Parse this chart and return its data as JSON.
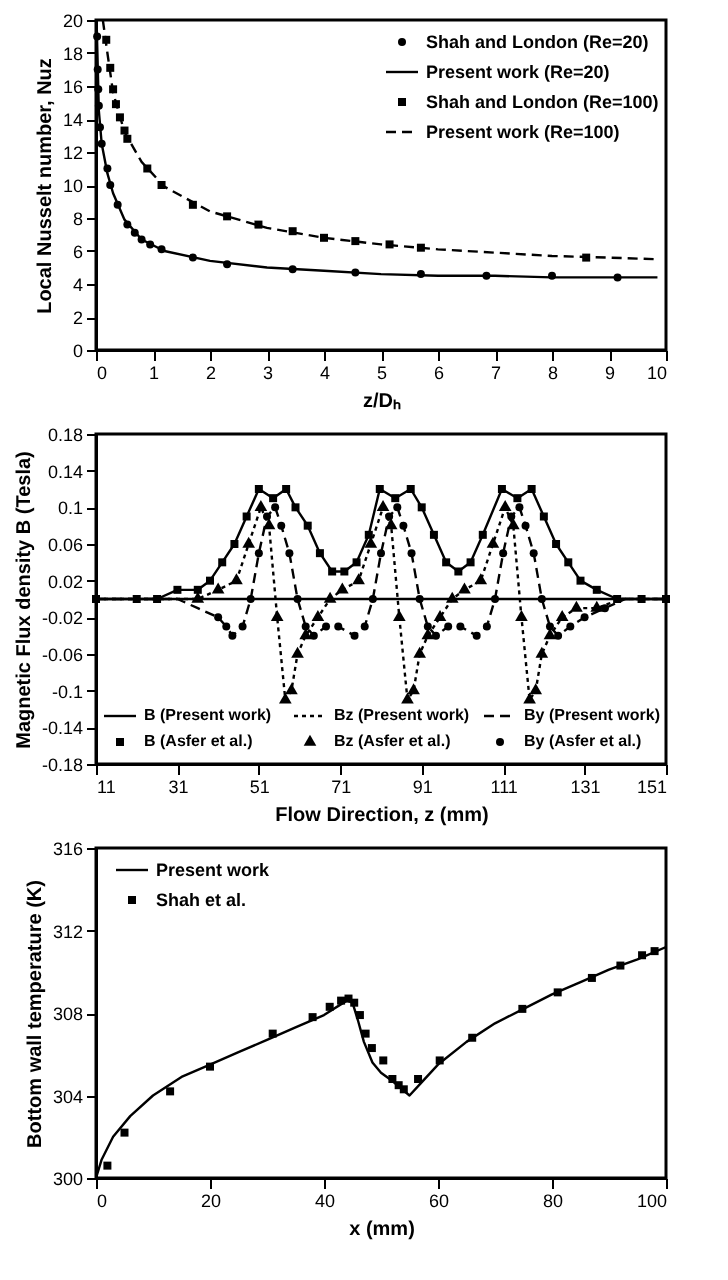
{
  "chart_data": [
    {
      "type": "line",
      "xlabel": "z/Dₕ",
      "ylabel": "Local Nusselt number, Nuz",
      "xlim": [
        0,
        10
      ],
      "ylim": [
        0,
        20
      ],
      "xticks": [
        0,
        1,
        2,
        3,
        4,
        5,
        6,
        7,
        8,
        9,
        10
      ],
      "yticks": [
        0,
        2,
        4,
        6,
        8,
        10,
        12,
        14,
        16,
        18,
        20
      ],
      "grid": false,
      "legend": "top right",
      "series": [
        {
          "name": "Shah and London (Re=20)",
          "type": "scatter",
          "marker": "circle",
          "color": "#000000",
          "x": [
            0.02,
            0.03,
            0.04,
            0.05,
            0.07,
            0.1,
            0.2,
            0.25,
            0.38,
            0.55,
            0.68,
            0.8,
            0.95,
            1.15,
            1.7,
            2.3,
            3.45,
            4.55,
            5.7,
            6.85,
            8,
            9.15
          ],
          "values": [
            19,
            17,
            15.8,
            14.8,
            13.5,
            12.5,
            11,
            10,
            8.8,
            7.6,
            7.1,
            6.7,
            6.4,
            6.1,
            5.6,
            5.2,
            4.9,
            4.7,
            4.6,
            4.5,
            4.5,
            4.4
          ]
        },
        {
          "name": "Present work (Re=20)",
          "marker": "none",
          "line_style": "solid",
          "color": "#000000",
          "x": [
            0.01,
            0.05,
            0.1,
            0.2,
            0.3,
            0.5,
            0.8,
            1.2,
            2,
            3,
            4,
            5,
            6,
            7,
            8,
            9,
            9.85
          ],
          "values": [
            20,
            14.5,
            12.5,
            10.7,
            9.5,
            7.9,
            6.7,
            6.0,
            5.4,
            5.0,
            4.8,
            4.6,
            4.5,
            4.5,
            4.4,
            4.4,
            4.4
          ]
        },
        {
          "name": "Shah and London (Re=100)",
          "type": "scatter",
          "marker": "square",
          "color": "#000000",
          "x": [
            0.18,
            0.25,
            0.3,
            0.35,
            0.42,
            0.5,
            0.55,
            0.9,
            1.15,
            1.7,
            2.3,
            2.85,
            3.45,
            4,
            4.55,
            5.15,
            5.7,
            8.6
          ],
          "values": [
            18.8,
            17.1,
            15.8,
            14.9,
            14.1,
            13.3,
            12.8,
            11,
            10,
            8.8,
            8.1,
            7.6,
            7.2,
            6.8,
            6.6,
            6.4,
            6.2,
            5.6
          ]
        },
        {
          "name": "Present work (Re=100)",
          "marker": "none",
          "line_style": "dashed",
          "color": "#000000",
          "x": [
            0.12,
            0.2,
            0.3,
            0.5,
            0.8,
            1.2,
            2,
            3,
            4,
            5,
            6,
            7,
            8,
            9,
            9.85
          ],
          "values": [
            20,
            18,
            15.6,
            13.2,
            11.4,
            9.9,
            8.4,
            7.4,
            6.8,
            6.4,
            6.1,
            5.9,
            5.7,
            5.6,
            5.5
          ]
        }
      ]
    },
    {
      "type": "line",
      "xlabel": "Flow Direction, z (mm)",
      "ylabel": "Magnetic Flux density B (Tesla)",
      "xlim": [
        11,
        151
      ],
      "ylim": [
        -0.18,
        0.18
      ],
      "xticks": [
        11,
        31,
        51,
        71,
        91,
        111,
        131,
        151
      ],
      "yticks": [
        -0.18,
        -0.14,
        -0.1,
        -0.06,
        -0.02,
        0.02,
        0.06,
        0.1,
        0.14,
        0.18
      ],
      "grid": false,
      "legend": "bottom",
      "ref_lines": [
        {
          "axis": "y",
          "value": 0,
          "color": "#000000",
          "line_style": "solid"
        }
      ],
      "series": [
        {
          "name": "B (Present work)",
          "marker": "none",
          "line_style": "solid",
          "color": "#000000",
          "x": [
            11,
            21,
            26,
            31,
            36,
            39,
            42,
            45,
            48,
            51,
            54.5,
            57.7,
            60,
            63,
            66,
            69,
            72,
            75,
            78,
            80.7,
            84.5,
            88.3,
            91,
            94,
            97,
            100,
            103,
            106,
            110.7,
            114.5,
            118,
            121,
            124,
            127,
            130,
            134,
            139,
            145,
            151
          ],
          "values": [
            0,
            0,
            0,
            0.01,
            0.01,
            0.02,
            0.04,
            0.06,
            0.09,
            0.12,
            0.11,
            0.12,
            0.1,
            0.08,
            0.05,
            0.03,
            0.03,
            0.04,
            0.07,
            0.12,
            0.11,
            0.12,
            0.1,
            0.07,
            0.04,
            0.03,
            0.04,
            0.07,
            0.12,
            0.11,
            0.12,
            0.09,
            0.06,
            0.04,
            0.02,
            0.01,
            0,
            0,
            0
          ]
        },
        {
          "name": "Bz (Present work)",
          "marker": "none",
          "line_style": "dotted",
          "color": "#000000",
          "x": [
            11,
            21,
            31,
            36,
            41,
            45.5,
            48.5,
            51.5,
            53.5,
            55.5,
            57.5,
            59,
            60.5,
            62.5,
            65.5,
            68.5,
            71.5,
            75.5,
            78.5,
            81.5,
            83.5,
            85.5,
            87.5,
            89,
            90.5,
            92.5,
            95.5,
            98.5,
            101.5,
            105.5,
            108.5,
            111.5,
            113.5,
            115.5,
            117.5,
            119,
            120.5,
            122.5,
            125.5,
            129,
            134,
            140,
            151
          ],
          "values": [
            0,
            0,
            0,
            0,
            0.01,
            0.02,
            0.06,
            0.1,
            0.08,
            -0.02,
            -0.11,
            -0.1,
            -0.06,
            -0.04,
            -0.02,
            0,
            0.01,
            0.02,
            0.06,
            0.1,
            0.08,
            -0.02,
            -0.11,
            -0.1,
            -0.06,
            -0.04,
            -0.02,
            0,
            0.01,
            0.02,
            0.06,
            0.1,
            0.08,
            -0.02,
            -0.11,
            -0.1,
            -0.06,
            -0.04,
            -0.02,
            -0.01,
            -0.01,
            0,
            0
          ]
        },
        {
          "name": "By (Present work)",
          "marker": "none",
          "line_style": "dashed",
          "color": "#000000",
          "x": [
            11,
            21,
            31,
            36,
            41,
            43,
            44.5,
            47,
            49,
            51,
            53,
            55,
            56.5,
            58.5,
            60.5,
            62.5,
            64.5,
            67.5,
            70.5,
            74.5,
            77,
            79,
            81,
            83,
            85,
            86.5,
            88.5,
            90.5,
            92.5,
            94.5,
            97.5,
            100.5,
            104.5,
            107,
            109,
            111,
            113,
            115,
            116.5,
            118.5,
            120.5,
            122.5,
            124.5,
            127.5,
            131,
            136,
            141,
            146,
            151
          ],
          "values": [
            0,
            0,
            0,
            -0.01,
            -0.02,
            -0.03,
            -0.04,
            -0.03,
            0,
            0.05,
            0.09,
            0.1,
            0.08,
            0.05,
            0,
            -0.03,
            -0.04,
            -0.03,
            -0.03,
            -0.04,
            -0.03,
            0,
            0.05,
            0.09,
            0.1,
            0.08,
            0.05,
            0,
            -0.03,
            -0.04,
            -0.03,
            -0.03,
            -0.04,
            -0.03,
            0,
            0.05,
            0.09,
            0.1,
            0.08,
            0.05,
            0,
            -0.03,
            -0.04,
            -0.03,
            -0.02,
            -0.01,
            0,
            0,
            0
          ]
        },
        {
          "name": "B (Asfer et al.)",
          "type": "scatter",
          "marker": "square",
          "color": "#000000",
          "x": [
            11,
            21,
            26,
            31,
            36,
            39,
            42,
            45,
            48,
            51,
            54.5,
            57.7,
            60,
            63,
            66,
            69,
            72,
            75,
            78,
            80.7,
            84.5,
            88.3,
            91,
            94,
            97,
            100,
            103,
            106,
            110.7,
            114.5,
            118,
            121,
            124,
            127,
            130,
            134,
            139,
            145,
            151
          ],
          "values": [
            0,
            0,
            0,
            0.01,
            0.01,
            0.02,
            0.04,
            0.06,
            0.09,
            0.12,
            0.11,
            0.12,
            0.1,
            0.08,
            0.05,
            0.03,
            0.03,
            0.04,
            0.07,
            0.12,
            0.11,
            0.12,
            0.1,
            0.07,
            0.04,
            0.03,
            0.04,
            0.07,
            0.12,
            0.11,
            0.12,
            0.09,
            0.06,
            0.04,
            0.02,
            0.01,
            0,
            0,
            0
          ]
        },
        {
          "name": "Bz (Asfer et al.)",
          "type": "scatter",
          "marker": "triangle",
          "color": "#000000",
          "x": [
            36,
            41,
            45.5,
            48.5,
            51.5,
            53.5,
            55.5,
            57.5,
            59,
            60.5,
            62.5,
            65.5,
            68.5,
            71.5,
            75.5,
            78.5,
            81.5,
            83.5,
            85.5,
            87.5,
            89,
            90.5,
            92.5,
            95.5,
            98.5,
            101.5,
            105.5,
            108.5,
            111.5,
            113.5,
            115.5,
            117.5,
            119,
            120.5,
            122.5,
            125.5,
            129,
            134
          ],
          "values": [
            0,
            0.01,
            0.02,
            0.06,
            0.1,
            0.08,
            -0.02,
            -0.11,
            -0.1,
            -0.06,
            -0.04,
            -0.02,
            0,
            0.01,
            0.02,
            0.06,
            0.1,
            0.08,
            -0.02,
            -0.11,
            -0.1,
            -0.06,
            -0.04,
            -0.02,
            0,
            0.01,
            0.02,
            0.06,
            0.1,
            0.08,
            -0.02,
            -0.11,
            -0.1,
            -0.06,
            -0.04,
            -0.02,
            -0.01,
            -0.01
          ]
        },
        {
          "name": "By (Asfer et al.)",
          "type": "scatter",
          "marker": "circle",
          "color": "#000000",
          "x": [
            41,
            43,
            44.5,
            47,
            49,
            51,
            53,
            55,
            56.5,
            58.5,
            60.5,
            62.5,
            64.5,
            67.5,
            70.5,
            74.5,
            77,
            79,
            81,
            83,
            85,
            86.5,
            88.5,
            90.5,
            92.5,
            94.5,
            97.5,
            100.5,
            104.5,
            107,
            109,
            111,
            113,
            115,
            116.5,
            118.5,
            120.5,
            122.5,
            124.5,
            127.5,
            131,
            136
          ],
          "values": [
            -0.02,
            -0.03,
            -0.04,
            -0.03,
            0,
            0.05,
            0.09,
            0.1,
            0.08,
            0.05,
            0,
            -0.03,
            -0.04,
            -0.03,
            -0.03,
            -0.04,
            -0.03,
            0,
            0.05,
            0.09,
            0.1,
            0.08,
            0.05,
            0,
            -0.03,
            -0.04,
            -0.03,
            -0.03,
            -0.04,
            -0.03,
            0,
            0.05,
            0.09,
            0.1,
            0.08,
            0.05,
            0,
            -0.03,
            -0.04,
            -0.03,
            -0.02,
            -0.01
          ]
        }
      ]
    },
    {
      "type": "line",
      "xlabel": "x (mm)",
      "ylabel": "Bottom wall temperature (K)",
      "xlim": [
        0,
        100
      ],
      "ylim": [
        300,
        316
      ],
      "xticks": [
        0,
        20,
        40,
        60,
        80,
        100
      ],
      "yticks": [
        300,
        304,
        308,
        312,
        316
      ],
      "grid": false,
      "legend": "top left",
      "series": [
        {
          "name": "Present work",
          "marker": "none",
          "line_style": "solid",
          "color": "#000000",
          "x": [
            0,
            1,
            3,
            6,
            10,
            15,
            20,
            25,
            30,
            35,
            40,
            44,
            45,
            46,
            47,
            48.5,
            50,
            52,
            55,
            57,
            60,
            65,
            70,
            75,
            80,
            85,
            90,
            95,
            100
          ],
          "values": [
            300,
            300.9,
            302,
            303,
            304,
            304.9,
            305.5,
            306.1,
            306.7,
            307.3,
            307.9,
            308.6,
            308.5,
            307.6,
            306.6,
            305.6,
            305.1,
            304.7,
            304.0,
            304.6,
            305.5,
            306.6,
            307.5,
            308.2,
            308.9,
            309.5,
            310.1,
            310.6,
            311.2
          ]
        },
        {
          "name": "Shah et al.",
          "type": "scatter",
          "marker": "square",
          "color": "#000000",
          "x": [
            2,
            5,
            13,
            20,
            31,
            38,
            41,
            43,
            44.3,
            45.3,
            46.3,
            47.3,
            48.4,
            50.4,
            52,
            53.1,
            54,
            56.5,
            60.3,
            66,
            74.8,
            81,
            87,
            92,
            95.8,
            98
          ],
          "values": [
            300.6,
            302.2,
            304.2,
            305.4,
            307.0,
            307.8,
            308.3,
            308.6,
            308.7,
            308.5,
            307.9,
            307.0,
            306.3,
            305.7,
            304.8,
            304.5,
            304.3,
            304.8,
            305.7,
            306.8,
            308.2,
            309.0,
            309.7,
            310.3,
            310.8,
            311.0
          ]
        }
      ]
    }
  ]
}
